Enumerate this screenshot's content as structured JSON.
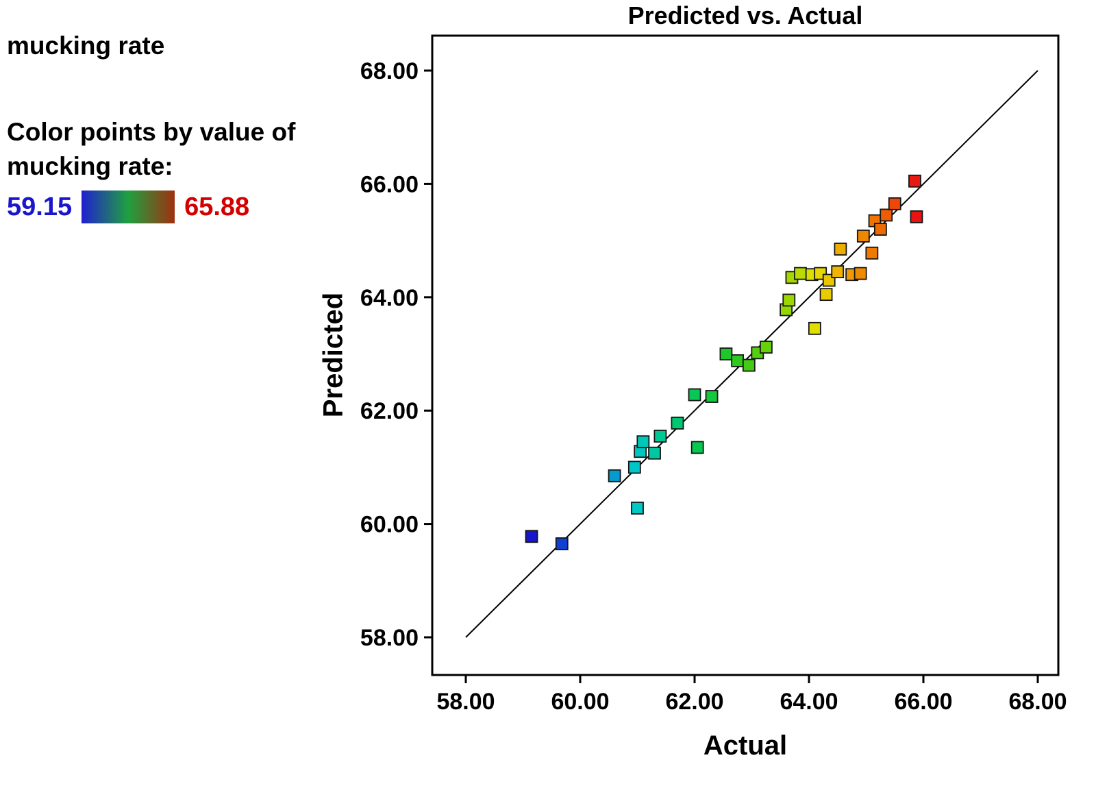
{
  "legend": {
    "response_name": "mucking rate",
    "caption_line1": "Color points by value of",
    "caption_line2": "mucking rate:",
    "min_label": "59.15",
    "max_label": "65.88",
    "min_label_color": "#1a16cc",
    "max_label_color": "#d40000",
    "gradient_stops": [
      "#2020d0",
      "#20a040",
      "#a03010"
    ]
  },
  "chart_data": {
    "type": "scatter",
    "title": "Predicted vs. Actual",
    "xlabel": "Actual",
    "ylabel": "Predicted",
    "xlim": [
      58,
      68
    ],
    "ylim": [
      58,
      68
    ],
    "xtick_values": [
      58,
      60,
      62,
      64,
      66,
      68
    ],
    "xtick_labels": [
      "58.00",
      "60.00",
      "62.00",
      "64.00",
      "66.00",
      "68.00"
    ],
    "ytick_values": [
      58,
      60,
      62,
      64,
      66,
      68
    ],
    "ytick_labels": [
      "58.00",
      "60.00",
      "62.00",
      "64.00",
      "66.00",
      "68.00"
    ],
    "marker": "square",
    "grid": false,
    "reference_line": {
      "x1": 58,
      "y1": 58,
      "x2": 68,
      "y2": 68
    },
    "color_by": "mucking rate",
    "color_value_range": [
      59.15,
      65.88
    ],
    "colormap": [
      {
        "t": 0.0,
        "c": "#1616ce"
      },
      {
        "t": 0.14,
        "c": "#0a5fd6"
      },
      {
        "t": 0.27,
        "c": "#00c8c8"
      },
      {
        "t": 0.4,
        "c": "#00c860"
      },
      {
        "t": 0.52,
        "c": "#22c822"
      },
      {
        "t": 0.64,
        "c": "#7ed400"
      },
      {
        "t": 0.74,
        "c": "#e6e000"
      },
      {
        "t": 0.82,
        "c": "#f0a000"
      },
      {
        "t": 0.9,
        "c": "#f07000"
      },
      {
        "t": 1.0,
        "c": "#e81414"
      }
    ],
    "points": [
      [
        59.15,
        59.78
      ],
      [
        59.68,
        59.65
      ],
      [
        60.6,
        60.85
      ],
      [
        61.0,
        60.28
      ],
      [
        60.95,
        61.0
      ],
      [
        61.05,
        61.28
      ],
      [
        61.1,
        61.45
      ],
      [
        61.3,
        61.25
      ],
      [
        61.4,
        61.55
      ],
      [
        61.7,
        61.78
      ],
      [
        62.05,
        61.35
      ],
      [
        62.0,
        62.28
      ],
      [
        62.3,
        62.25
      ],
      [
        62.55,
        63.0
      ],
      [
        62.75,
        62.88
      ],
      [
        62.95,
        62.8
      ],
      [
        63.1,
        63.02
      ],
      [
        63.25,
        63.12
      ],
      [
        63.6,
        63.78
      ],
      [
        63.65,
        63.95
      ],
      [
        63.7,
        64.35
      ],
      [
        63.85,
        64.42
      ],
      [
        64.1,
        63.45
      ],
      [
        64.05,
        64.4
      ],
      [
        64.2,
        64.42
      ],
      [
        64.3,
        64.05
      ],
      [
        64.35,
        64.3
      ],
      [
        64.5,
        64.45
      ],
      [
        64.55,
        64.85
      ],
      [
        64.75,
        64.4
      ],
      [
        64.9,
        64.42
      ],
      [
        64.95,
        65.08
      ],
      [
        65.1,
        64.78
      ],
      [
        65.15,
        65.35
      ],
      [
        65.25,
        65.2
      ],
      [
        65.35,
        65.45
      ],
      [
        65.5,
        65.65
      ],
      [
        65.85,
        66.05
      ],
      [
        65.88,
        65.42
      ]
    ]
  }
}
